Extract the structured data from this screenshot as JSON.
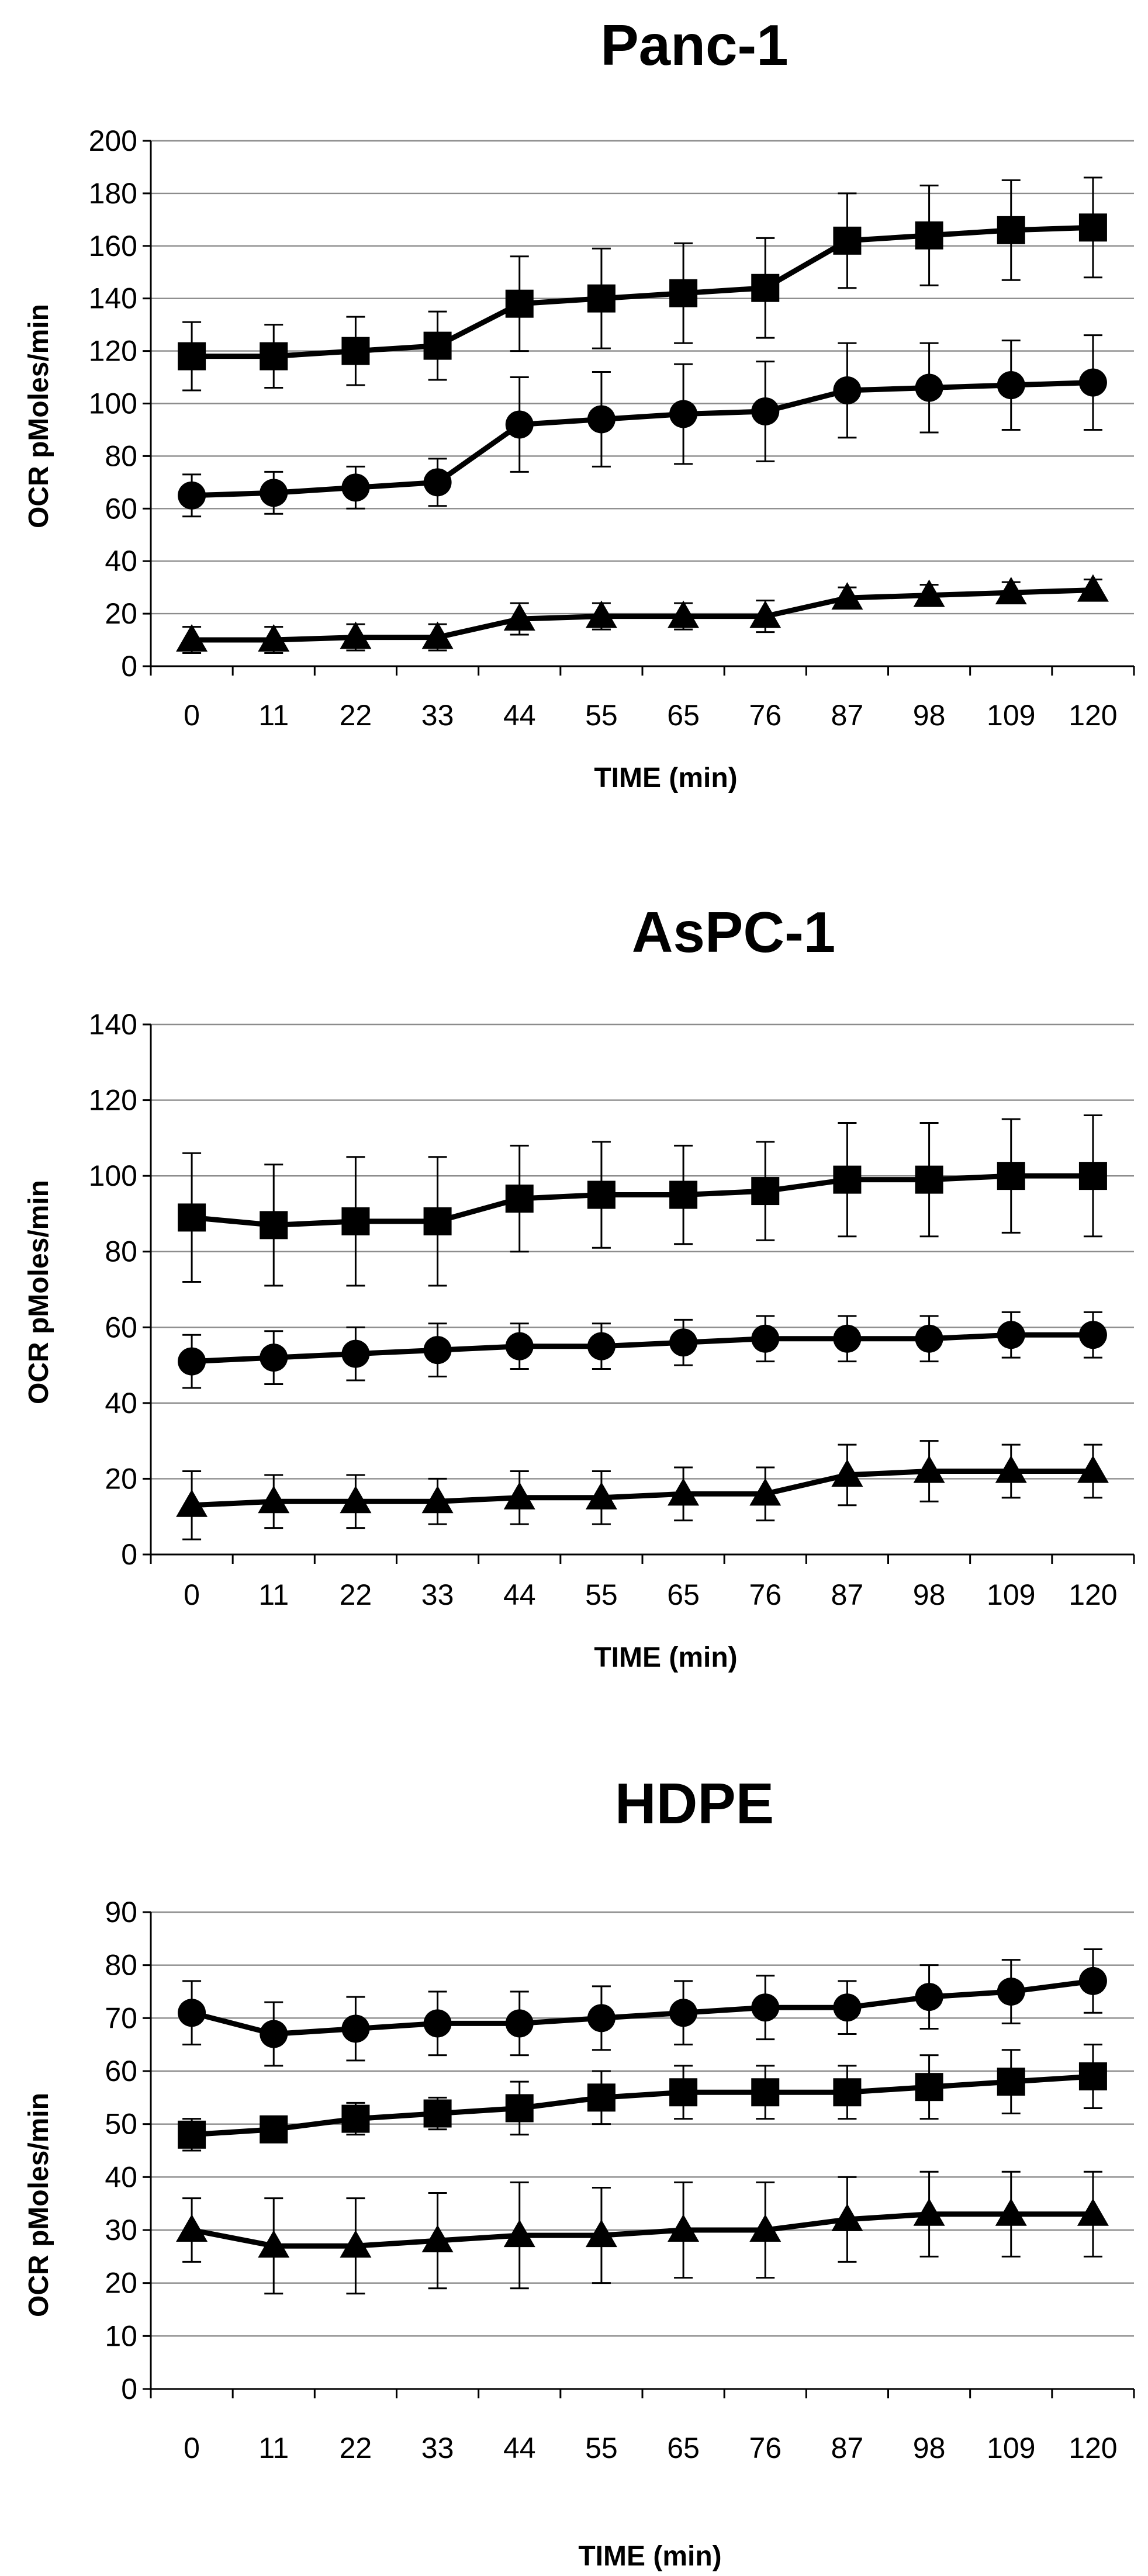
{
  "chart_data": [
    {
      "type": "line",
      "title": "Panc-1",
      "xlabel": "TIME (min)",
      "ylabel": "OCR pMoles/min",
      "ylim": [
        0,
        200
      ],
      "ytick_step": 20,
      "grid": true,
      "categories": [
        "0",
        "11",
        "22",
        "33",
        "44",
        "55",
        "65",
        "76",
        "87",
        "98",
        "109",
        "120"
      ],
      "series": [
        {
          "name": "square",
          "marker": "square",
          "values": [
            118,
            118,
            120,
            122,
            138,
            140,
            142,
            144,
            162,
            164,
            166,
            167
          ],
          "errors": [
            13,
            12,
            13,
            13,
            18,
            19,
            19,
            19,
            18,
            19,
            19,
            19
          ]
        },
        {
          "name": "circle",
          "marker": "circle",
          "values": [
            65,
            66,
            68,
            70,
            92,
            94,
            96,
            97,
            105,
            106,
            107,
            108
          ],
          "errors": [
            8,
            8,
            8,
            9,
            18,
            18,
            19,
            19,
            18,
            17,
            17,
            18
          ]
        },
        {
          "name": "triangle",
          "marker": "triangle",
          "values": [
            10,
            10,
            11,
            11,
            18,
            19,
            19,
            19,
            26,
            27,
            28,
            29
          ],
          "errors": [
            5,
            5,
            5,
            5,
            6,
            5,
            5,
            6,
            4,
            4,
            4,
            4
          ]
        }
      ]
    },
    {
      "type": "line",
      "title": "AsPC-1",
      "xlabel": "TIME (min)",
      "ylabel": "OCR pMoles/min",
      "ylim": [
        0,
        140
      ],
      "ytick_step": 20,
      "grid": true,
      "categories": [
        "0",
        "11",
        "22",
        "33",
        "44",
        "55",
        "65",
        "76",
        "87",
        "98",
        "109",
        "120"
      ],
      "series": [
        {
          "name": "square",
          "marker": "square",
          "values": [
            89,
            87,
            88,
            88,
            94,
            95,
            95,
            96,
            99,
            99,
            100,
            100
          ],
          "errors": [
            17,
            16,
            17,
            17,
            14,
            14,
            13,
            13,
            15,
            15,
            15,
            16
          ]
        },
        {
          "name": "circle",
          "marker": "circle",
          "values": [
            51,
            52,
            53,
            54,
            55,
            55,
            56,
            57,
            57,
            57,
            58,
            58
          ],
          "errors": [
            7,
            7,
            7,
            7,
            6,
            6,
            6,
            6,
            6,
            6,
            6,
            6
          ]
        },
        {
          "name": "triangle",
          "marker": "triangle",
          "values": [
            13,
            14,
            14,
            14,
            15,
            15,
            16,
            16,
            21,
            22,
            22,
            22
          ],
          "errors": [
            9,
            7,
            7,
            6,
            7,
            7,
            7,
            7,
            8,
            8,
            7,
            7
          ]
        }
      ]
    },
    {
      "type": "line",
      "title": "HDPE",
      "xlabel": "TIME (min)",
      "ylabel": "OCR pMoles/min",
      "ylim": [
        0,
        90
      ],
      "ytick_step": 10,
      "grid": true,
      "categories": [
        "0",
        "11",
        "22",
        "33",
        "44",
        "55",
        "65",
        "76",
        "87",
        "98",
        "109",
        "120"
      ],
      "series": [
        {
          "name": "circle",
          "marker": "circle",
          "values": [
            71,
            67,
            68,
            69,
            69,
            70,
            71,
            72,
            72,
            74,
            75,
            77
          ],
          "errors": [
            6,
            6,
            6,
            6,
            6,
            6,
            6,
            6,
            5,
            6,
            6,
            6
          ]
        },
        {
          "name": "square",
          "marker": "square",
          "values": [
            48,
            49,
            51,
            52,
            53,
            55,
            56,
            56,
            56,
            57,
            58,
            59
          ],
          "errors": [
            3,
            2,
            3,
            3,
            5,
            5,
            5,
            5,
            5,
            6,
            6,
            6
          ]
        },
        {
          "name": "triangle",
          "marker": "triangle",
          "values": [
            30,
            27,
            27,
            28,
            29,
            29,
            30,
            30,
            32,
            33,
            33,
            33
          ],
          "errors": [
            6,
            9,
            9,
            9,
            10,
            9,
            9,
            9,
            8,
            8,
            8,
            8
          ]
        }
      ]
    }
  ]
}
